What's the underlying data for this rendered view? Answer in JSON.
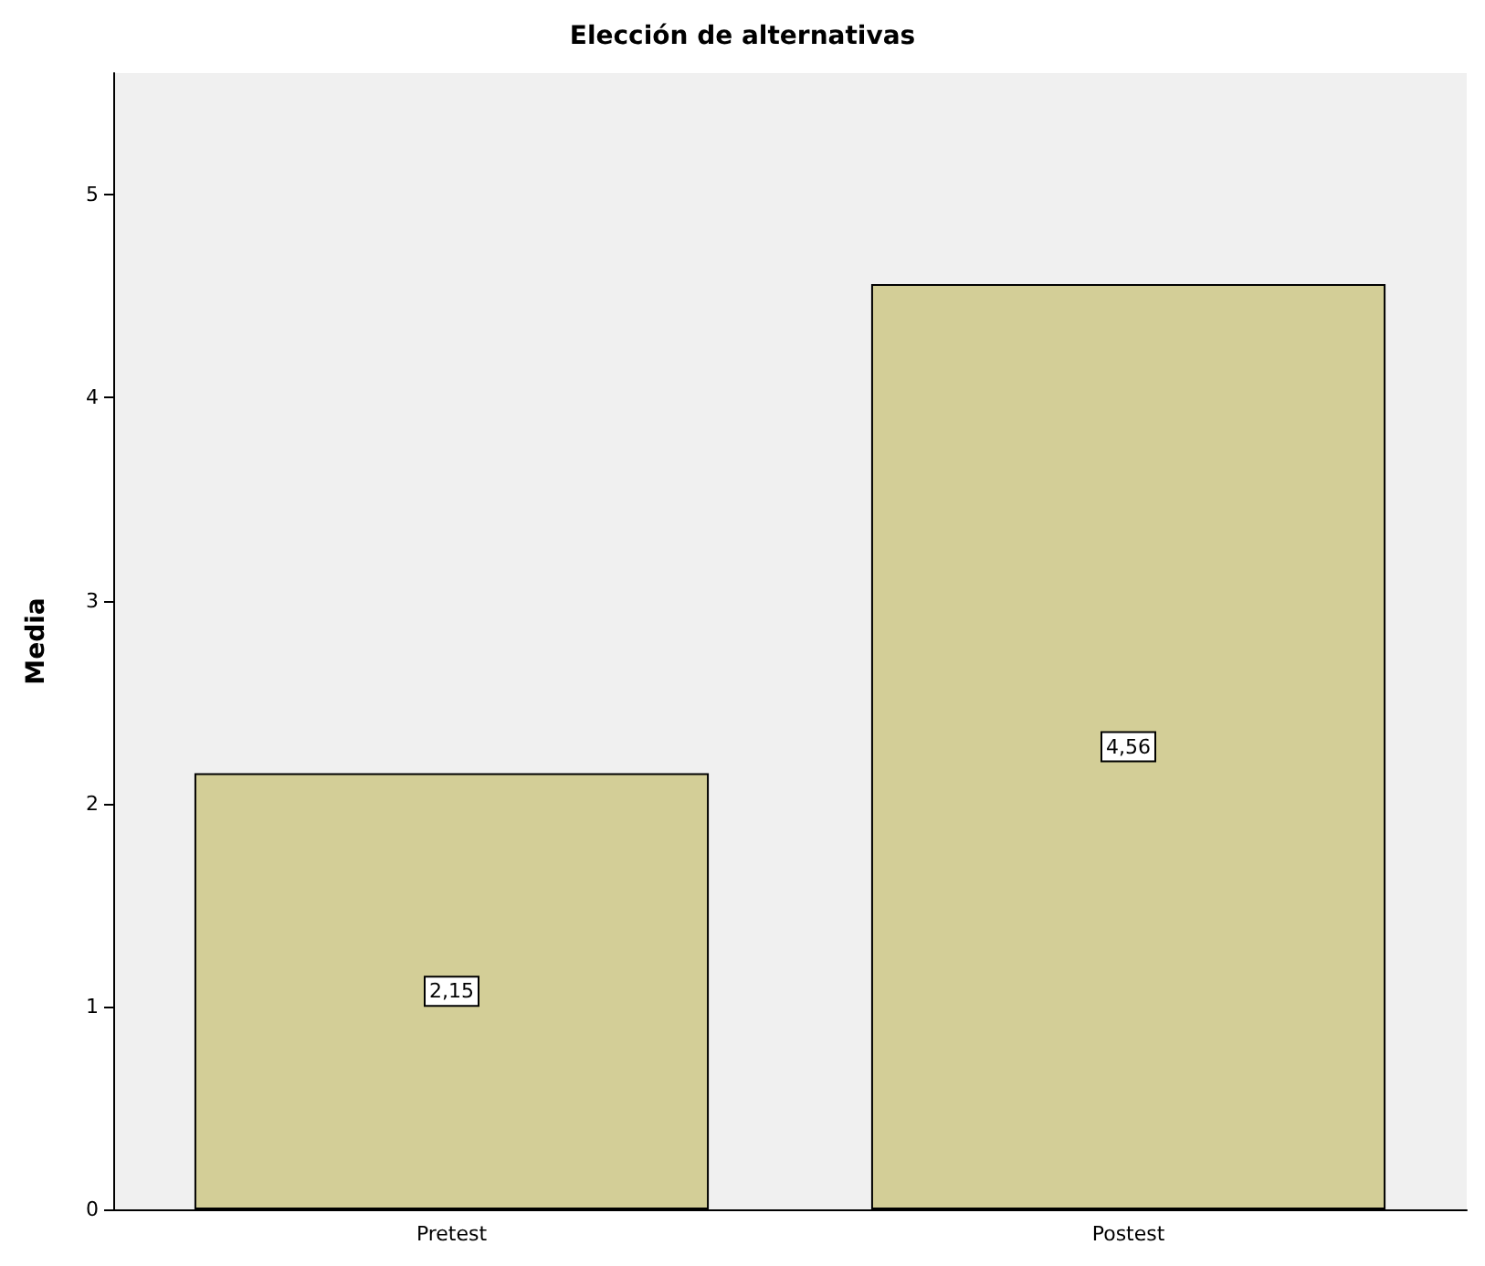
{
  "chart_data": {
    "type": "bar",
    "title": "Elección de alternativas",
    "ylabel": "Media",
    "categories": [
      "Pretest",
      "Postest"
    ],
    "values": [
      2.15,
      4.56
    ],
    "value_labels": [
      "2,15",
      "4,56"
    ],
    "color": "#d3ce97",
    "ylim": [
      0,
      5.6
    ],
    "yticks": [
      0,
      1,
      2,
      3,
      4,
      5
    ],
    "grid": false
  }
}
